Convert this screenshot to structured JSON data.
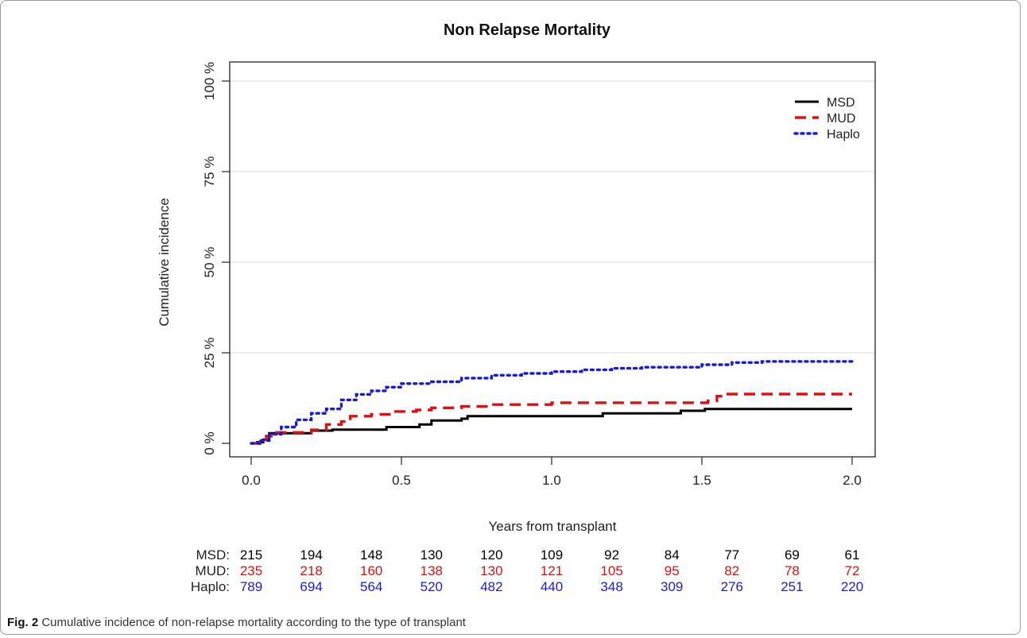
{
  "chart_data": {
    "type": "line",
    "title": "Non Relapse Mortality",
    "xlabel": "Years from transplant",
    "ylabel": "Cumulative incidence",
    "xlim": [
      0,
      2
    ],
    "ylim": [
      0,
      100
    ],
    "x_ticks": [
      "0.0",
      "0.5",
      "1.0",
      "1.5",
      "2.0"
    ],
    "y_ticks": [
      "0 %",
      "25 %",
      "50 %",
      "75 %",
      "100 %"
    ],
    "grid": "horizontal",
    "legend_position": "top-right",
    "series": [
      {
        "name": "MSD",
        "color": "#000000",
        "dash": "solid",
        "points": [
          [
            0.0,
            0
          ],
          [
            0.02,
            0.3
          ],
          [
            0.04,
            1.0
          ],
          [
            0.06,
            2.8
          ],
          [
            0.2,
            3.5
          ],
          [
            0.27,
            3.8
          ],
          [
            0.45,
            4.5
          ],
          [
            0.56,
            5.2
          ],
          [
            0.6,
            6.3
          ],
          [
            0.7,
            6.8
          ],
          [
            0.72,
            7.5
          ],
          [
            1.0,
            7.5
          ],
          [
            1.16,
            7.5
          ],
          [
            1.17,
            8.3
          ],
          [
            1.42,
            8.3
          ],
          [
            1.43,
            9.0
          ],
          [
            1.5,
            9.0
          ],
          [
            1.51,
            9.5
          ],
          [
            2.0,
            9.5
          ]
        ]
      },
      {
        "name": "MUD",
        "color": "#dd1111",
        "dash": "dashed",
        "points": [
          [
            0.0,
            0
          ],
          [
            0.03,
            0.5
          ],
          [
            0.05,
            2.0
          ],
          [
            0.08,
            3.0
          ],
          [
            0.2,
            3.7
          ],
          [
            0.25,
            5.2
          ],
          [
            0.3,
            6.0
          ],
          [
            0.33,
            7.5
          ],
          [
            0.4,
            8.0
          ],
          [
            0.47,
            8.8
          ],
          [
            0.55,
            9.2
          ],
          [
            0.6,
            9.8
          ],
          [
            0.7,
            10.2
          ],
          [
            0.8,
            10.7
          ],
          [
            1.0,
            11.2
          ],
          [
            1.3,
            11.2
          ],
          [
            1.5,
            11.2
          ],
          [
            1.52,
            11.7
          ],
          [
            1.55,
            13.0
          ],
          [
            1.58,
            13.6
          ],
          [
            2.0,
            13.6
          ]
        ]
      },
      {
        "name": "Haplo",
        "color": "#1a1adb",
        "dash": "dotted",
        "points": [
          [
            0.0,
            0
          ],
          [
            0.03,
            0.8
          ],
          [
            0.06,
            2.5
          ],
          [
            0.1,
            4.5
          ],
          [
            0.15,
            6.5
          ],
          [
            0.2,
            8.3
          ],
          [
            0.25,
            9.5
          ],
          [
            0.3,
            12.0
          ],
          [
            0.35,
            13.5
          ],
          [
            0.4,
            14.5
          ],
          [
            0.45,
            15.5
          ],
          [
            0.5,
            16.5
          ],
          [
            0.6,
            17.0
          ],
          [
            0.7,
            18.0
          ],
          [
            0.8,
            18.8
          ],
          [
            0.9,
            19.3
          ],
          [
            1.0,
            19.8
          ],
          [
            1.1,
            20.3
          ],
          [
            1.2,
            20.7
          ],
          [
            1.3,
            21.0
          ],
          [
            1.4,
            21.0
          ],
          [
            1.5,
            21.7
          ],
          [
            1.6,
            22.3
          ],
          [
            1.7,
            22.6
          ],
          [
            2.0,
            22.6
          ]
        ]
      }
    ],
    "risk_table": {
      "times": [
        0.0,
        0.2,
        0.4,
        0.6,
        0.8,
        1.0,
        1.2,
        1.4,
        1.6,
        1.8,
        2.0
      ],
      "rows": [
        {
          "label": "MSD:",
          "color": "#000000",
          "values": [
            "215",
            "194",
            "148",
            "130",
            "120",
            "109",
            "92",
            "84",
            "77",
            "69",
            "61"
          ]
        },
        {
          "label": "MUD:",
          "color": "#dd1111",
          "values": [
            "235",
            "218",
            "160",
            "138",
            "130",
            "121",
            "105",
            "95",
            "82",
            "78",
            "72"
          ]
        },
        {
          "label": "Haplo:",
          "color": "#1a1adb",
          "values": [
            "789",
            "694",
            "564",
            "520",
            "482",
            "440",
            "348",
            "309",
            "276",
            "251",
            "220"
          ]
        }
      ]
    }
  },
  "caption": {
    "label": "Fig. 2",
    "text": "Cumulative incidence of non-relapse mortality according to the type of transplant"
  }
}
